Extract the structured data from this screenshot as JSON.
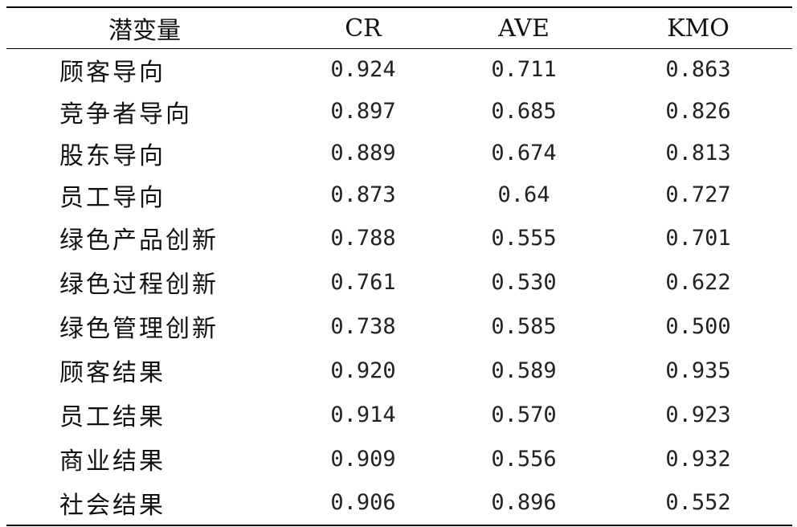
{
  "table": {
    "headers": [
      "潜变量",
      "CR",
      "AVE",
      "KMO"
    ],
    "rows": [
      {
        "label": "顾客导向",
        "cr": "0.924",
        "ave": "0.711",
        "kmo": "0.863"
      },
      {
        "label": "竞争者导向",
        "cr": "0.897",
        "ave": "0.685",
        "kmo": "0.826"
      },
      {
        "label": "股东导向",
        "cr": "0.889",
        "ave": "0.674",
        "kmo": "0.813"
      },
      {
        "label": "员工导向",
        "cr": "0.873",
        "ave": "0.64",
        "kmo": "0.727"
      },
      {
        "label": "绿色产品创新",
        "cr": "0.788",
        "ave": "0.555",
        "kmo": "0.701"
      },
      {
        "label": "绿色过程创新",
        "cr": "0.761",
        "ave": "0.530",
        "kmo": "0.622"
      },
      {
        "label": "绿色管理创新",
        "cr": "0.738",
        "ave": "0.585",
        "kmo": "0.500"
      },
      {
        "label": "顾客结果",
        "cr": "0.920",
        "ave": "0.589",
        "kmo": "0.935"
      },
      {
        "label": "员工结果",
        "cr": "0.914",
        "ave": "0.570",
        "kmo": "0.923"
      },
      {
        "label": "商业结果",
        "cr": "0.909",
        "ave": "0.556",
        "kmo": "0.932"
      },
      {
        "label": "社会结果",
        "cr": "0.906",
        "ave": "0.896",
        "kmo": "0.552"
      }
    ]
  }
}
